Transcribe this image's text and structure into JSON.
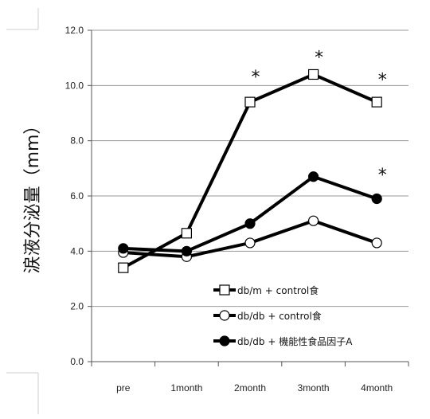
{
  "chart_data": {
    "type": "line",
    "ylabel": "涙液分泌量（mm）",
    "xlabel": "",
    "title": "",
    "categories": [
      "pre",
      "1month",
      "2month",
      "3month",
      "4month"
    ],
    "ylim": [
      0,
      12
    ],
    "yticks": [
      "0.0",
      "2.0",
      "4.0",
      "6.0",
      "8.0",
      "10.0",
      "12.0"
    ],
    "grid": true,
    "legend_position": "bottom-right",
    "series": [
      {
        "name": "db/m + control食",
        "marker": "open-square",
        "color": "#000000",
        "values": [
          3.4,
          4.65,
          9.4,
          10.4,
          9.4
        ]
      },
      {
        "name": "db/db + control食",
        "marker": "open-circle",
        "color": "#000000",
        "values": [
          3.95,
          3.8,
          4.3,
          5.1,
          4.3
        ]
      },
      {
        "name": "db/db + 機能性食品因子A",
        "marker": "filled-circle",
        "color": "#000000",
        "values": [
          4.1,
          4.0,
          5.0,
          6.7,
          5.9
        ]
      }
    ],
    "annotations": [
      {
        "text": "*",
        "category": "2month",
        "y": 10.5
      },
      {
        "text": "*",
        "category": "3month",
        "y": 11.2
      },
      {
        "text": "*",
        "category": "4month",
        "y": 10.4
      },
      {
        "text": "*",
        "category": "4month",
        "y": 6.95
      }
    ]
  }
}
